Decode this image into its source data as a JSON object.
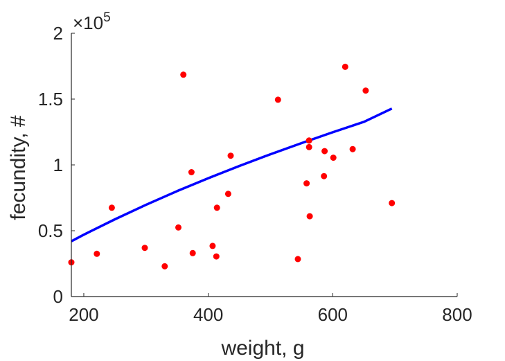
{
  "chart_data": {
    "type": "scatter",
    "title": "",
    "xlabel": "weight, g",
    "ylabel": "fecundity, #",
    "xlim": [
      180,
      800
    ],
    "ylim": [
      0,
      200000
    ],
    "xticks": [
      200,
      400,
      600,
      800
    ],
    "xtick_labels": [
      "200",
      "400",
      "600",
      "800"
    ],
    "yticks": [
      0,
      50000,
      100000,
      150000,
      200000
    ],
    "ytick_labels": [
      "0",
      "0.5",
      "1",
      "1.5",
      "2"
    ],
    "y_exponent": {
      "base": "×10",
      "power": "5"
    },
    "grid": false,
    "legend": "none",
    "colors": {
      "points": "#ff0000",
      "fit": "#0000ff",
      "axes": "#262626"
    },
    "series": [
      {
        "kind": "scatter",
        "x": [
          180,
          221,
          245,
          298,
          330,
          352,
          360,
          373,
          375,
          407,
          413,
          414,
          432,
          436,
          512,
          544,
          558,
          562,
          562,
          563,
          586,
          587,
          601,
          620,
          632,
          653,
          695
        ],
        "y": [
          26000,
          32500,
          67500,
          37000,
          23000,
          52500,
          168500,
          94500,
          33000,
          38500,
          30500,
          67500,
          78000,
          107000,
          149500,
          28500,
          86000,
          118500,
          113500,
          61000,
          91500,
          110500,
          105500,
          174500,
          112000,
          156500,
          71000
        ]
      },
      {
        "kind": "line",
        "x": [
          180,
          200,
          250,
          300,
          350,
          400,
          450,
          500,
          550,
          600,
          650,
          695
        ],
        "y": [
          42000,
          47000,
          58700,
          69700,
          80100,
          89900,
          99200,
          108100,
          116600,
          124800,
          132700,
          142800
        ]
      }
    ]
  }
}
